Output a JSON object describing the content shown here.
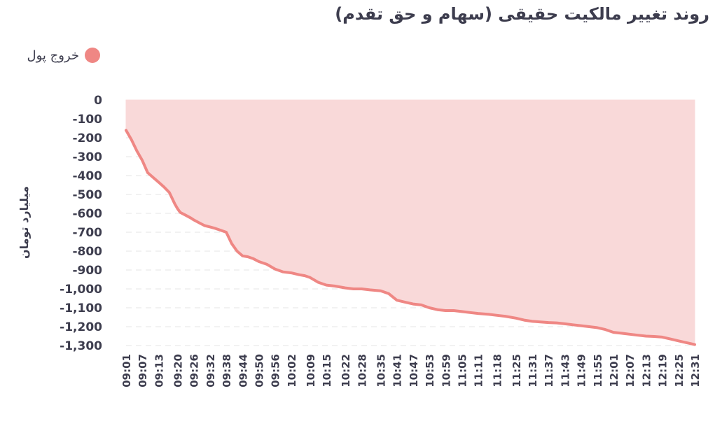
{
  "colors": {
    "series_line": "#ef8784",
    "series_fill": "#f9d9d9",
    "grid": "#e4e4e4",
    "text": "#3d3d4e"
  },
  "chart_data": {
    "type": "area",
    "title": "روند تغییر مالکیت حقیقی (سهام و حق تقدم)",
    "ylabel": "میلیارد تومان",
    "xlabel": "",
    "ylim": [
      -1300,
      0
    ],
    "yticks": [
      0,
      -100,
      -200,
      -300,
      -400,
      -500,
      -600,
      -700,
      -800,
      -900,
      -1000,
      -1100,
      -1200,
      -1300
    ],
    "ytick_labels": [
      "0",
      "-100",
      "-200",
      "-300",
      "-400",
      "-500",
      "-600",
      "-700",
      "-800",
      "-900",
      "-1,000",
      "-1,100",
      "-1,200",
      "-1,300"
    ],
    "grid": true,
    "legend_position": "top-left",
    "x_tick_labels": [
      "09:01",
      "09:07",
      "09:13",
      "09:20",
      "09:26",
      "09:32",
      "09:38",
      "09:44",
      "09:50",
      "09:56",
      "10:02",
      "10:09",
      "10:15",
      "10:22",
      "10:28",
      "10:35",
      "10:41",
      "10:47",
      "10:53",
      "10:59",
      "11:05",
      "11:11",
      "11:18",
      "11:25",
      "11:31",
      "11:37",
      "11:43",
      "11:49",
      "11:55",
      "12:01",
      "12:07",
      "12:13",
      "12:19",
      "12:25",
      "12:31"
    ],
    "series": [
      {
        "name": "خروج پول",
        "x": [
          "09:01",
          "09:03",
          "09:05",
          "09:07",
          "09:09",
          "09:11",
          "09:13",
          "09:15",
          "09:17",
          "09:19",
          "09:20",
          "09:21",
          "09:23",
          "09:25",
          "09:26",
          "09:28",
          "09:30",
          "09:32",
          "09:34",
          "09:36",
          "09:38",
          "09:40",
          "09:42",
          "09:44",
          "09:46",
          "09:48",
          "09:50",
          "09:53",
          "09:56",
          "09:59",
          "10:02",
          "10:05",
          "10:07",
          "10:09",
          "10:12",
          "10:15",
          "10:18",
          "10:22",
          "10:25",
          "10:28",
          "10:31",
          "10:35",
          "10:38",
          "10:41",
          "10:44",
          "10:47",
          "10:50",
          "10:53",
          "10:56",
          "10:59",
          "11:02",
          "11:05",
          "11:08",
          "11:11",
          "11:15",
          "11:18",
          "11:21",
          "11:25",
          "11:28",
          "11:31",
          "11:34",
          "11:37",
          "11:40",
          "11:43",
          "11:46",
          "11:49",
          "11:52",
          "11:55",
          "11:58",
          "12:01",
          "12:04",
          "12:07",
          "12:10",
          "12:13",
          "12:16",
          "12:19",
          "12:22",
          "12:25",
          "12:28",
          "12:31"
        ],
        "values": [
          -160,
          -210,
          -270,
          -320,
          -385,
          -410,
          -435,
          -460,
          -490,
          -550,
          -575,
          -595,
          -610,
          -625,
          -635,
          -650,
          -665,
          -672,
          -680,
          -690,
          -700,
          -760,
          -800,
          -825,
          -830,
          -840,
          -855,
          -870,
          -895,
          -910,
          -915,
          -925,
          -930,
          -940,
          -965,
          -980,
          -985,
          -995,
          -1000,
          -1000,
          -1005,
          -1010,
          -1025,
          -1060,
          -1070,
          -1080,
          -1085,
          -1100,
          -1110,
          -1115,
          -1115,
          -1120,
          -1125,
          -1130,
          -1135,
          -1140,
          -1145,
          -1155,
          -1165,
          -1172,
          -1175,
          -1178,
          -1180,
          -1185,
          -1190,
          -1195,
          -1200,
          -1205,
          -1215,
          -1230,
          -1235,
          -1240,
          -1245,
          -1250,
          -1252,
          -1255,
          -1265,
          -1275,
          -1285,
          -1295
        ]
      }
    ]
  }
}
